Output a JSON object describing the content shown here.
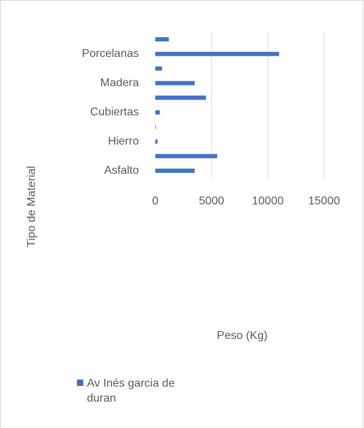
{
  "chart_data": {
    "type": "barh",
    "categories": [
      "Asfalto",
      null,
      "Hierro",
      null,
      "Cubiertas",
      null,
      "Madera",
      null,
      "Porcelanas",
      null
    ],
    "series": [
      {
        "name": "Av Inés garcia de duran",
        "color": "#4472c4",
        "values": [
          3500,
          5500,
          200,
          50,
          400,
          4500,
          3500,
          600,
          11000,
          1200
        ]
      }
    ],
    "xlim": [
      0,
      15000
    ],
    "xticks": [
      0,
      5000,
      10000,
      15000
    ],
    "grid": true,
    "x_label": "Peso (Kg)",
    "y_label": "Tipo de Material",
    "legend": "bottom"
  }
}
